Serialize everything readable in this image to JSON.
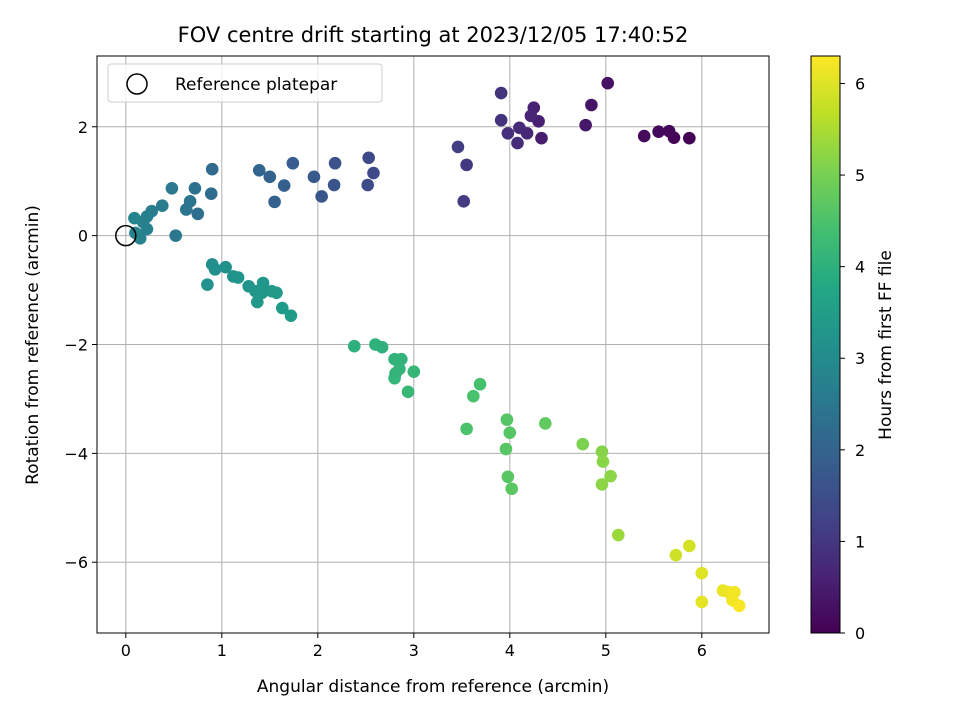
{
  "chart_data": {
    "type": "scatter",
    "title": "FOV centre drift starting at 2023/12/05 17:40:52",
    "xlabel": "Angular distance from reference (arcmin)",
    "ylabel": "Rotation from reference (arcmin)",
    "xlim": [
      -0.3,
      6.7
    ],
    "ylim": [
      -7.3,
      3.3
    ],
    "xticks": [
      0,
      1,
      2,
      3,
      4,
      5,
      6
    ],
    "yticks": [
      -6,
      -4,
      -2,
      0,
      2
    ],
    "xtick_labels": [
      "0",
      "1",
      "2",
      "3",
      "4",
      "5",
      "6"
    ],
    "ytick_labels": [
      "−6",
      "−4",
      "−2",
      "0",
      "2"
    ],
    "grid": true,
    "legend": {
      "position": "top-left",
      "entries": [
        {
          "label": "Reference platepar",
          "marker": "open-circle"
        }
      ]
    },
    "reference_point": {
      "x": 0,
      "y": 0
    },
    "colorbar": {
      "label": "Hours from first FF file",
      "colormap": "viridis",
      "range": [
        0,
        6.3
      ],
      "ticks": [
        0,
        1,
        2,
        3,
        4,
        5,
        6
      ],
      "tick_labels": [
        "0",
        "1",
        "2",
        "3",
        "4",
        "5",
        "6"
      ]
    },
    "points": [
      {
        "x": 5.87,
        "y": 1.79,
        "c": 0.02
      },
      {
        "x": 5.71,
        "y": 1.8,
        "c": 0.05
      },
      {
        "x": 5.66,
        "y": 1.92,
        "c": 0.1
      },
      {
        "x": 5.55,
        "y": 1.91,
        "c": 0.15
      },
      {
        "x": 5.4,
        "y": 1.83,
        "c": 0.2
      },
      {
        "x": 5.02,
        "y": 2.8,
        "c": 0.3
      },
      {
        "x": 4.85,
        "y": 2.4,
        "c": 0.35
      },
      {
        "x": 4.79,
        "y": 2.03,
        "c": 0.4
      },
      {
        "x": 4.33,
        "y": 1.79,
        "c": 0.5
      },
      {
        "x": 4.3,
        "y": 2.1,
        "c": 0.55
      },
      {
        "x": 4.25,
        "y": 2.35,
        "c": 0.6
      },
      {
        "x": 4.22,
        "y": 2.2,
        "c": 0.65
      },
      {
        "x": 4.18,
        "y": 1.88,
        "c": 0.7
      },
      {
        "x": 4.1,
        "y": 1.98,
        "c": 0.75
      },
      {
        "x": 4.08,
        "y": 1.7,
        "c": 0.8
      },
      {
        "x": 3.98,
        "y": 1.88,
        "c": 0.85
      },
      {
        "x": 3.91,
        "y": 2.12,
        "c": 0.9
      },
      {
        "x": 3.91,
        "y": 2.62,
        "c": 0.95
      },
      {
        "x": 3.55,
        "y": 1.3,
        "c": 1.05
      },
      {
        "x": 3.52,
        "y": 0.63,
        "c": 1.1
      },
      {
        "x": 3.46,
        "y": 1.63,
        "c": 1.15
      },
      {
        "x": 2.58,
        "y": 1.15,
        "c": 1.35
      },
      {
        "x": 2.53,
        "y": 1.43,
        "c": 1.4
      },
      {
        "x": 2.52,
        "y": 0.93,
        "c": 1.45
      },
      {
        "x": 2.18,
        "y": 1.33,
        "c": 1.6
      },
      {
        "x": 2.17,
        "y": 0.93,
        "c": 1.65
      },
      {
        "x": 2.04,
        "y": 0.72,
        "c": 1.7
      },
      {
        "x": 1.96,
        "y": 1.08,
        "c": 1.75
      },
      {
        "x": 1.74,
        "y": 1.33,
        "c": 1.85
      },
      {
        "x": 1.65,
        "y": 0.92,
        "c": 1.9
      },
      {
        "x": 1.55,
        "y": 0.62,
        "c": 1.95
      },
      {
        "x": 1.5,
        "y": 1.08,
        "c": 2.0
      },
      {
        "x": 1.39,
        "y": 1.2,
        "c": 2.05
      },
      {
        "x": 0.9,
        "y": 1.22,
        "c": 2.2
      },
      {
        "x": 0.89,
        "y": 0.77,
        "c": 2.25
      },
      {
        "x": 0.75,
        "y": 0.4,
        "c": 2.3
      },
      {
        "x": 0.72,
        "y": 0.87,
        "c": 2.35
      },
      {
        "x": 0.67,
        "y": 0.63,
        "c": 2.4
      },
      {
        "x": 0.63,
        "y": 0.48,
        "c": 2.45
      },
      {
        "x": 0.52,
        "y": 0.0,
        "c": 2.5
      },
      {
        "x": 0.48,
        "y": 0.87,
        "c": 2.55
      },
      {
        "x": 0.38,
        "y": 0.55,
        "c": 2.6
      },
      {
        "x": 0.27,
        "y": 0.45,
        "c": 2.65
      },
      {
        "x": 0.22,
        "y": 0.35,
        "c": 2.7
      },
      {
        "x": 0.22,
        "y": 0.12,
        "c": 2.72
      },
      {
        "x": 0.18,
        "y": 0.25,
        "c": 2.75
      },
      {
        "x": 0.15,
        "y": -0.05,
        "c": 2.78
      },
      {
        "x": 0.1,
        "y": 0.05,
        "c": 2.8
      },
      {
        "x": 0.09,
        "y": 0.32,
        "c": 2.82
      },
      {
        "x": 0.9,
        "y": -0.53,
        "c": 3.1
      },
      {
        "x": 0.93,
        "y": -0.62,
        "c": 3.12
      },
      {
        "x": 1.04,
        "y": -0.58,
        "c": 3.15
      },
      {
        "x": 0.85,
        "y": -0.9,
        "c": 3.17
      },
      {
        "x": 1.12,
        "y": -0.75,
        "c": 3.2
      },
      {
        "x": 1.17,
        "y": -0.77,
        "c": 3.22
      },
      {
        "x": 1.28,
        "y": -0.93,
        "c": 3.25
      },
      {
        "x": 1.35,
        "y": -1.02,
        "c": 3.28
      },
      {
        "x": 1.43,
        "y": -0.87,
        "c": 3.3
      },
      {
        "x": 1.42,
        "y": -1.05,
        "c": 3.32
      },
      {
        "x": 1.37,
        "y": -1.22,
        "c": 3.35
      },
      {
        "x": 1.52,
        "y": -1.02,
        "c": 3.38
      },
      {
        "x": 1.57,
        "y": -1.05,
        "c": 3.4
      },
      {
        "x": 1.63,
        "y": -1.33,
        "c": 3.42
      },
      {
        "x": 1.72,
        "y": -1.47,
        "c": 3.45
      },
      {
        "x": 2.38,
        "y": -2.03,
        "c": 4.0
      },
      {
        "x": 2.6,
        "y": -2.0,
        "c": 4.02
      },
      {
        "x": 2.67,
        "y": -2.05,
        "c": 4.04
      },
      {
        "x": 2.8,
        "y": -2.27,
        "c": 4.06
      },
      {
        "x": 2.87,
        "y": -2.27,
        "c": 4.08
      },
      {
        "x": 2.85,
        "y": -2.45,
        "c": 4.1
      },
      {
        "x": 2.81,
        "y": -2.53,
        "c": 4.12
      },
      {
        "x": 2.8,
        "y": -2.62,
        "c": 4.14
      },
      {
        "x": 3.0,
        "y": -2.5,
        "c": 4.16
      },
      {
        "x": 2.94,
        "y": -2.87,
        "c": 4.18
      },
      {
        "x": 3.69,
        "y": -2.73,
        "c": 4.45
      },
      {
        "x": 3.62,
        "y": -2.95,
        "c": 4.47
      },
      {
        "x": 3.55,
        "y": -3.55,
        "c": 4.5
      },
      {
        "x": 3.97,
        "y": -3.38,
        "c": 4.6
      },
      {
        "x": 4.0,
        "y": -3.62,
        "c": 4.62
      },
      {
        "x": 3.96,
        "y": -3.92,
        "c": 4.64
      },
      {
        "x": 3.98,
        "y": -4.43,
        "c": 4.66
      },
      {
        "x": 4.02,
        "y": -4.65,
        "c": 4.68
      },
      {
        "x": 4.37,
        "y": -3.45,
        "c": 4.75
      },
      {
        "x": 4.76,
        "y": -3.83,
        "c": 5.05
      },
      {
        "x": 4.96,
        "y": -3.97,
        "c": 5.15
      },
      {
        "x": 4.97,
        "y": -4.15,
        "c": 5.18
      },
      {
        "x": 5.05,
        "y": -4.42,
        "c": 5.2
      },
      {
        "x": 4.96,
        "y": -4.57,
        "c": 5.22
      },
      {
        "x": 5.13,
        "y": -5.5,
        "c": 5.35
      },
      {
        "x": 5.73,
        "y": -5.87,
        "c": 5.85
      },
      {
        "x": 5.87,
        "y": -5.7,
        "c": 5.9
      },
      {
        "x": 6.0,
        "y": -6.2,
        "c": 6.0
      },
      {
        "x": 6.0,
        "y": -6.73,
        "c": 6.05
      },
      {
        "x": 6.22,
        "y": -6.52,
        "c": 6.1
      },
      {
        "x": 6.28,
        "y": -6.55,
        "c": 6.15
      },
      {
        "x": 6.32,
        "y": -6.7,
        "c": 6.18
      },
      {
        "x": 6.34,
        "y": -6.55,
        "c": 6.2
      },
      {
        "x": 6.39,
        "y": -6.8,
        "c": 6.25
      }
    ]
  }
}
